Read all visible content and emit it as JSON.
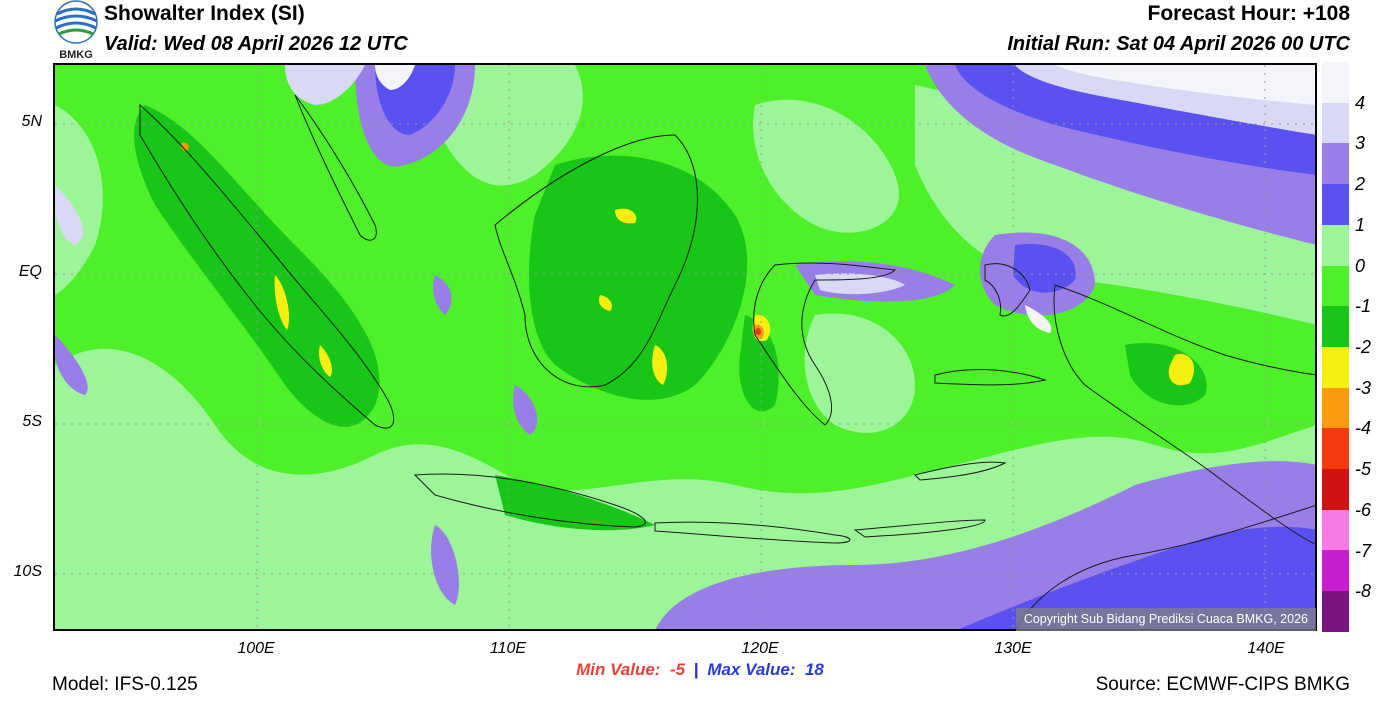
{
  "header": {
    "title": "Showalter Index (SI)",
    "valid": "Valid: Wed 08 April 2026 12 UTC",
    "forecast_hour": "Forecast Hour: +108",
    "initial_run": "Initial Run: Sat 04 April 2026 00 UTC",
    "logo_text": "BMKG"
  },
  "map": {
    "lat_labels": [
      "5N",
      "EQ",
      "5S",
      "10S"
    ],
    "lon_labels": [
      "100E",
      "110E",
      "120E",
      "130E",
      "140E"
    ],
    "copyright": "Copyright Sub Bidang Prediksi Cuaca BMKG, 2026"
  },
  "stats": {
    "min_label": "Min Value:",
    "min_value": "-5",
    "separator": "|",
    "max_label": "Max Value:",
    "max_value": "18"
  },
  "footer": {
    "model": "Model: IFS-0.125",
    "source": "Source: ECMWF-CIPS BMKG"
  },
  "legend": {
    "labels": [
      "4",
      "3",
      "2",
      "1",
      "0",
      "-1",
      "-2",
      "-3",
      "-4",
      "-5",
      "-6",
      "-7",
      "-8"
    ],
    "colors": [
      "#f4f4fb",
      "#d9d9f6",
      "#9a7ee8",
      "#5a52f0",
      "#9df59a",
      "#4ef02a",
      "#17c617",
      "#f7ee12",
      "#fb9b0c",
      "#f23a0c",
      "#cf1212",
      "#f77be5",
      "#c81ed0",
      "#7a1580"
    ]
  },
  "colors": {
    "title_text": "#000000",
    "min_value": "#e8413a",
    "max_value": "#2a3ad8"
  }
}
